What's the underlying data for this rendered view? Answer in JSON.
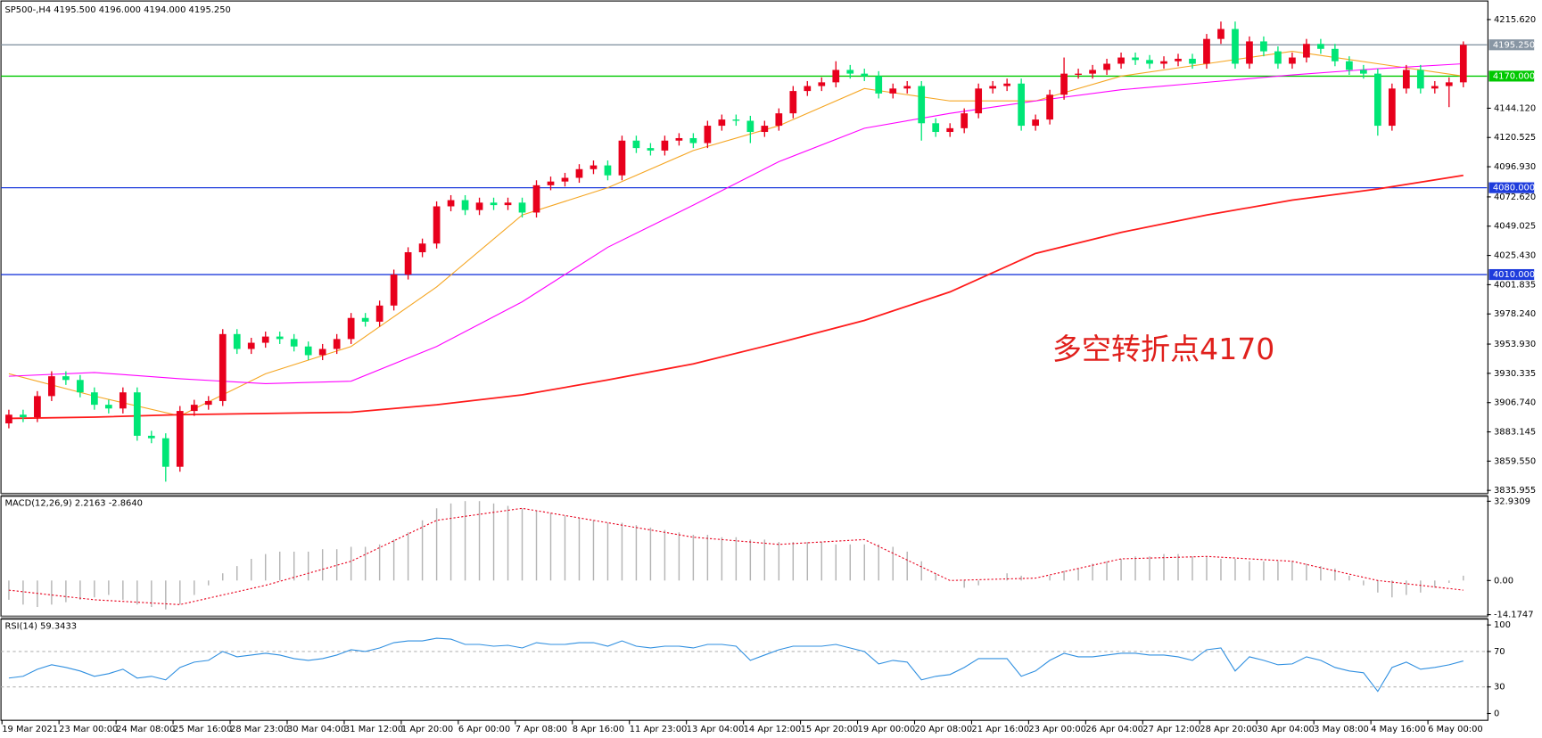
{
  "chart_data": [
    {
      "type": "candlestick",
      "title": "SP500-,H4  4195.500 4196.000 4194.000 4195.250",
      "categories": [
        "19 Mar 2021",
        null,
        null,
        null,
        "23 Mar 00:00",
        null,
        null,
        null,
        "24 Mar 08:00",
        null,
        null,
        null,
        "25 Mar 16:00",
        null,
        null,
        null,
        "28 Mar 23:00",
        null,
        null,
        null,
        "30 Mar 04:00",
        null,
        null,
        null,
        "31 Mar 12:00",
        null,
        null,
        null,
        "1 Apr 20:00",
        null,
        null,
        null,
        "6 Apr 00:00",
        null,
        null,
        null,
        "7 Apr 08:00",
        null,
        null,
        null,
        "8 Apr 16:00",
        null,
        null,
        null,
        "11 Apr 23:00",
        null,
        null,
        null,
        "13 Apr 04:00",
        null,
        null,
        null,
        "14 Apr 12:00",
        null,
        null,
        null,
        "15 Apr 20:00",
        null,
        null,
        null,
        "19 Apr 00:00",
        null,
        null,
        null,
        "20 Apr 08:00",
        null,
        null,
        null,
        "21 Apr 16:00",
        null,
        null,
        null,
        "23 Apr 00:00",
        null,
        null,
        null,
        "26 Apr 04:00",
        null,
        null,
        null,
        "27 Apr 12:00",
        null,
        null,
        null,
        "28 Apr 20:00",
        null,
        null,
        null,
        "30 Apr 04:00",
        null,
        null,
        null,
        "3 May 08:00",
        null,
        null,
        null,
        "4 May 16:00",
        null,
        null,
        null,
        "6 May 00:00",
        null,
        null
      ],
      "open": [
        3890,
        3897,
        3895,
        3912,
        3928,
        3925,
        3915,
        3905,
        3902,
        3915,
        3880,
        3878,
        3855,
        3900,
        3905,
        3908,
        3962,
        3950,
        3955,
        3960,
        3958,
        3952,
        3945,
        3950,
        3958,
        3975,
        3972,
        3985,
        4010,
        4028,
        4035,
        4065,
        4070,
        4062,
        4068,
        4066,
        4068,
        4060,
        4082,
        4085,
        4088,
        4095,
        4098,
        4090,
        4118,
        4112,
        4110,
        4118,
        4120,
        4116,
        4130,
        4135,
        4134,
        4125,
        4130,
        4140,
        4158,
        4162,
        4165,
        4175,
        4172,
        4170,
        4156,
        4160,
        4162,
        4132,
        4125,
        4128,
        4140,
        4160,
        4162,
        4164,
        4130,
        4135,
        4155,
        4172,
        4172,
        4175,
        4180,
        4185,
        4183,
        4180,
        4182,
        4184,
        4180,
        4200,
        4208,
        4180,
        4198,
        4190,
        4180,
        4185,
        4196,
        4192,
        4182,
        4175,
        4172,
        4130,
        4160,
        4175,
        4160,
        4162,
        4165
      ],
      "high": [
        3901,
        3901,
        3916,
        3932,
        3932,
        3929,
        3919,
        3909,
        3919,
        3919,
        3884,
        3882,
        3904,
        3909,
        3912,
        3966,
        3966,
        3959,
        3964,
        3964,
        3962,
        3956,
        3954,
        3962,
        3979,
        3979,
        3989,
        4014,
        4032,
        4039,
        4069,
        4074,
        4074,
        4072,
        4072,
        4072,
        4072,
        4086,
        4089,
        4092,
        4099,
        4102,
        4102,
        4122,
        4122,
        4116,
        4122,
        4124,
        4124,
        4134,
        4139,
        4139,
        4138,
        4134,
        4144,
        4162,
        4166,
        4169,
        4182,
        4179,
        4176,
        4174,
        4164,
        4166,
        4166,
        4136,
        4132,
        4144,
        4164,
        4166,
        4168,
        4168,
        4139,
        4159,
        4185,
        4176,
        4179,
        4184,
        4189,
        4189,
        4187,
        4186,
        4188,
        4188,
        4204,
        4214,
        4214,
        4202,
        4202,
        4194,
        4189,
        4200,
        4200,
        4196,
        4186,
        4179,
        4176,
        4164,
        4179,
        4179,
        4166,
        4169,
        4198
      ],
      "low": [
        3886,
        3891,
        3891,
        3908,
        3921,
        3911,
        3901,
        3898,
        3898,
        3876,
        3874,
        3843,
        3851,
        3896,
        3901,
        3904,
        3946,
        3946,
        3951,
        3954,
        3948,
        3941,
        3941,
        3946,
        3954,
        3968,
        3968,
        3981,
        4006,
        4024,
        4031,
        4061,
        4058,
        4058,
        4062,
        4062,
        4056,
        4056,
        4078,
        4081,
        4084,
        4091,
        4086,
        4086,
        4108,
        4106,
        4106,
        4114,
        4112,
        4112,
        4126,
        4130,
        4116,
        4121,
        4126,
        4136,
        4154,
        4158,
        4161,
        4168,
        4166,
        4152,
        4152,
        4156,
        4118,
        4121,
        4121,
        4124,
        4136,
        4156,
        4158,
        4126,
        4126,
        4131,
        4151,
        4168,
        4168,
        4171,
        4176,
        4179,
        4176,
        4176,
        4178,
        4176,
        4176,
        4196,
        4176,
        4176,
        4186,
        4176,
        4176,
        4181,
        4188,
        4178,
        4171,
        4168,
        4122,
        4126,
        4156,
        4156,
        4156,
        4145,
        4161
      ],
      "close": [
        3897,
        3895,
        3912,
        3928,
        3925,
        3915,
        3905,
        3902,
        3915,
        3880,
        3878,
        3855,
        3900,
        3905,
        3908,
        3962,
        3950,
        3955,
        3960,
        3958,
        3952,
        3945,
        3950,
        3958,
        3975,
        3972,
        3985,
        4010,
        4028,
        4035,
        4065,
        4070,
        4062,
        4068,
        4066,
        4068,
        4060,
        4082,
        4085,
        4088,
        4095,
        4098,
        4090,
        4118,
        4112,
        4110,
        4118,
        4120,
        4116,
        4130,
        4135,
        4134,
        4125,
        4130,
        4140,
        4158,
        4162,
        4165,
        4175,
        4172,
        4170,
        4156,
        4160,
        4162,
        4132,
        4125,
        4128,
        4140,
        4160,
        4162,
        4164,
        4130,
        4135,
        4155,
        4172,
        4172,
        4175,
        4180,
        4185,
        4183,
        4180,
        4182,
        4184,
        4180,
        4200,
        4208,
        4180,
        4198,
        4190,
        4180,
        4185,
        4196,
        4192,
        4182,
        4175,
        4172,
        4130,
        4160,
        4175,
        4160,
        4162,
        4165,
        4195.25
      ],
      "up_color": "#e8001c",
      "down_color": "#00e676",
      "series": [
        {
          "color": "#f5a623",
          "x": [
            0,
            6,
            12,
            18,
            24,
            30,
            36,
            42,
            48,
            54,
            60,
            66,
            72,
            78,
            84,
            90,
            96,
            102
          ],
          "values": [
            3930,
            3912,
            3896,
            3930,
            3952,
            4000,
            4058,
            4080,
            4110,
            4130,
            4160,
            4150,
            4150,
            4170,
            4180,
            4190,
            4180,
            4170
          ]
        },
        {
          "color": "#ff00ff",
          "x": [
            0,
            6,
            12,
            18,
            24,
            30,
            36,
            42,
            48,
            54,
            60,
            66,
            72,
            78,
            84,
            90,
            96,
            102
          ],
          "values": [
            3928,
            3931,
            3926,
            3922,
            3924,
            3952,
            3988,
            4032,
            4066,
            4101,
            4128,
            4140,
            4150,
            4159,
            4165,
            4171,
            4176,
            4180
          ]
        },
        {
          "color": "#ff1a1a",
          "x": [
            0,
            6,
            12,
            18,
            24,
            30,
            36,
            42,
            48,
            54,
            60,
            66,
            72,
            78,
            84,
            90,
            96,
            102
          ],
          "values": [
            3894,
            3895,
            3897,
            3898,
            3899,
            3905,
            3913,
            3925,
            3938,
            3955,
            3973,
            3996,
            4027,
            4044,
            4058,
            4070,
            4079,
            4090
          ]
        }
      ],
      "hlines": [
        {
          "value": 4195.25,
          "label": "4195.250",
          "color": "#8896a4"
        },
        {
          "value": 4170,
          "label": "4170.000",
          "color": "#00c800"
        },
        {
          "value": 4080,
          "label": "4080.000",
          "color": "#1e3cdc"
        },
        {
          "value": 4010,
          "label": "4010.000",
          "color": "#1e3cdc"
        }
      ],
      "annotation": "多空转折点4170",
      "annotation_color": "#e0201c",
      "ylim": [
        3833.6,
        4229.8
      ],
      "yticks": [
        {
          "value": 4215.62,
          "label": "4215.620"
        },
        {
          "value": 4144.12,
          "label": "4144.120"
        },
        {
          "value": 4120.525,
          "label": "4120.525"
        },
        {
          "value": 4096.93,
          "label": "4096.930"
        },
        {
          "value": 4072.62,
          "label": "4072.620"
        },
        {
          "value": 4049.025,
          "label": "4049.025"
        },
        {
          "value": 4025.43,
          "label": "4025.430"
        },
        {
          "value": 4001.835,
          "label": "4001.835"
        },
        {
          "value": 3978.24,
          "label": "3978.240"
        },
        {
          "value": 3953.93,
          "label": "3953.930"
        },
        {
          "value": 3930.335,
          "label": "3930.335"
        },
        {
          "value": 3906.74,
          "label": "3906.740"
        },
        {
          "value": 3883.145,
          "label": "3883.145"
        },
        {
          "value": 3859.55,
          "label": "3859.550"
        },
        {
          "value": 3835.955,
          "label": "3835.955"
        }
      ]
    },
    {
      "type": "macd",
      "title": "MACD(12,26,9) 2.2163 -2.8640",
      "series": [
        {
          "color": "#b4b4b4",
          "values": [
            -8,
            -10,
            -11,
            -10,
            -9,
            -8,
            -7,
            -6,
            -8,
            -10,
            -11,
            -12,
            -10,
            -6,
            -2,
            3,
            6,
            9,
            11,
            12,
            12,
            12,
            13,
            13,
            14,
            14,
            15,
            17,
            20,
            25,
            30,
            32,
            33,
            33,
            32,
            31,
            30,
            29,
            28,
            27,
            26,
            25,
            24,
            24,
            23,
            22,
            21,
            20,
            19,
            19,
            18,
            18,
            17,
            17,
            16,
            16,
            16,
            16,
            15,
            15,
            15,
            15,
            14,
            12,
            8,
            3,
            0,
            -3,
            -2,
            0,
            3,
            2,
            0,
            2,
            4,
            5,
            7,
            8,
            9,
            10,
            10,
            11,
            11,
            10,
            10,
            9,
            9,
            8,
            8,
            8,
            8,
            7,
            6,
            5,
            2,
            -2,
            -5,
            -7,
            -6,
            -5,
            -3,
            -1,
            2
          ]
        },
        {
          "color": "#e8001c",
          "x": [
            0,
            6,
            12,
            18,
            24,
            30,
            36,
            42,
            48,
            54,
            60,
            66,
            72,
            78,
            84,
            90,
            96,
            102
          ],
          "values": [
            -4,
            -8,
            -10,
            -2,
            8,
            25,
            30,
            24,
            18,
            15,
            17,
            0,
            1,
            9,
            10,
            8,
            0,
            -4
          ]
        }
      ],
      "ylim": [
        -14.8,
        35
      ],
      "yticks": [
        32.9309,
        {
          "value": 0,
          "label": "0.00"
        },
        -14.1747
      ]
    },
    {
      "type": "line",
      "title": "RSI(14) 59.3433",
      "series": [
        {
          "color": "#2f8fe0",
          "values": [
            40,
            42,
            50,
            55,
            52,
            48,
            42,
            45,
            50,
            40,
            42,
            38,
            52,
            58,
            60,
            70,
            64,
            66,
            68,
            66,
            62,
            60,
            62,
            66,
            72,
            70,
            74,
            80,
            82,
            82,
            85,
            84,
            78,
            78,
            76,
            77,
            74,
            80,
            78,
            78,
            80,
            80,
            76,
            82,
            76,
            74,
            76,
            76,
            74,
            78,
            78,
            76,
            60,
            66,
            72,
            76,
            76,
            76,
            78,
            74,
            70,
            56,
            60,
            58,
            38,
            42,
            44,
            52,
            62,
            62,
            62,
            42,
            48,
            60,
            68,
            64,
            64,
            66,
            68,
            68,
            66,
            66,
            64,
            60,
            72,
            74,
            48,
            64,
            60,
            55,
            56,
            64,
            60,
            52,
            48,
            46,
            25,
            52,
            58,
            50,
            52,
            55,
            59.34
          ]
        }
      ],
      "levels": [
        30,
        70
      ],
      "ylim": [
        -7.7,
        106.6
      ],
      "yticks": [
        100,
        70,
        30,
        0
      ]
    }
  ]
}
